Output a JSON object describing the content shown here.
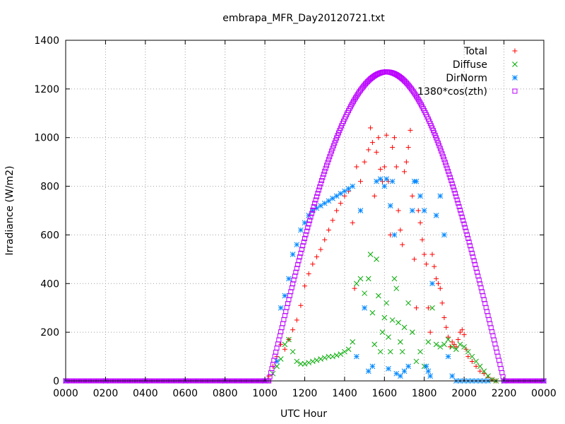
{
  "chart_data": {
    "type": "scatter",
    "title": "embrapa_MFR_Day20120721.txt",
    "xlabel": "UTC Hour",
    "ylabel": "Irradiance (W/m2)",
    "xlim": [
      0,
      24
    ],
    "ylim": [
      0,
      1400
    ],
    "grid": true,
    "legend_position": "top-right",
    "x_ticks": [
      {
        "value": 0,
        "label": "0000"
      },
      {
        "value": 2,
        "label": "0200"
      },
      {
        "value": 4,
        "label": "0400"
      },
      {
        "value": 6,
        "label": "0600"
      },
      {
        "value": 8,
        "label": "0800"
      },
      {
        "value": 10,
        "label": "1000"
      },
      {
        "value": 12,
        "label": "1200"
      },
      {
        "value": 14,
        "label": "1400"
      },
      {
        "value": 16,
        "label": "1600"
      },
      {
        "value": 18,
        "label": "1800"
      },
      {
        "value": 20,
        "label": "2000"
      },
      {
        "value": 22,
        "label": "2200"
      },
      {
        "value": 24,
        "label": "0000"
      }
    ],
    "y_ticks": [
      {
        "value": 0,
        "label": "0"
      },
      {
        "value": 200,
        "label": "200"
      },
      {
        "value": 400,
        "label": "400"
      },
      {
        "value": 600,
        "label": "600"
      },
      {
        "value": 800,
        "label": "800"
      },
      {
        "value": 1000,
        "label": "1000"
      },
      {
        "value": 1200,
        "label": "1200"
      },
      {
        "value": 1400,
        "label": "1400"
      }
    ],
    "series": [
      {
        "name": "Total",
        "color": "#ff0000",
        "marker": "plus",
        "points": [
          [
            0,
            0
          ],
          [
            1,
            0
          ],
          [
            2,
            0
          ],
          [
            3,
            0
          ],
          [
            4,
            0
          ],
          [
            5,
            0
          ],
          [
            6,
            0
          ],
          [
            7,
            0
          ],
          [
            8,
            0
          ],
          [
            9,
            0
          ],
          [
            10,
            0
          ],
          [
            10.2,
            20
          ],
          [
            10.4,
            60
          ],
          [
            10.6,
            100
          ],
          [
            10.8,
            150
          ],
          [
            11.0,
            130
          ],
          [
            11.2,
            170
          ],
          [
            11.4,
            210
          ],
          [
            11.6,
            250
          ],
          [
            11.8,
            310
          ],
          [
            12.0,
            390
          ],
          [
            12.2,
            440
          ],
          [
            12.4,
            480
          ],
          [
            12.6,
            510
          ],
          [
            12.8,
            540
          ],
          [
            13.0,
            580
          ],
          [
            13.2,
            620
          ],
          [
            13.4,
            660
          ],
          [
            13.6,
            700
          ],
          [
            13.8,
            730
          ],
          [
            14.0,
            760
          ],
          [
            14.2,
            780
          ],
          [
            14.4,
            650
          ],
          [
            14.5,
            380
          ],
          [
            14.6,
            880
          ],
          [
            14.8,
            820
          ],
          [
            15.0,
            900
          ],
          [
            15.2,
            950
          ],
          [
            15.3,
            1040
          ],
          [
            15.4,
            980
          ],
          [
            15.5,
            760
          ],
          [
            15.6,
            940
          ],
          [
            15.7,
            1000
          ],
          [
            15.8,
            870
          ],
          [
            15.9,
            820
          ],
          [
            16.0,
            880
          ],
          [
            16.1,
            1010
          ],
          [
            16.2,
            820
          ],
          [
            16.3,
            600
          ],
          [
            16.4,
            960
          ],
          [
            16.5,
            1000
          ],
          [
            16.6,
            880
          ],
          [
            16.7,
            700
          ],
          [
            16.8,
            620
          ],
          [
            16.9,
            560
          ],
          [
            17.0,
            860
          ],
          [
            17.1,
            900
          ],
          [
            17.2,
            960
          ],
          [
            17.3,
            1030
          ],
          [
            17.4,
            760
          ],
          [
            17.5,
            500
          ],
          [
            17.6,
            300
          ],
          [
            17.7,
            700
          ],
          [
            17.8,
            650
          ],
          [
            17.9,
            580
          ],
          [
            18.0,
            520
          ],
          [
            18.1,
            480
          ],
          [
            18.2,
            300
          ],
          [
            18.3,
            200
          ],
          [
            18.4,
            520
          ],
          [
            18.5,
            470
          ],
          [
            18.6,
            420
          ],
          [
            18.7,
            400
          ],
          [
            18.8,
            380
          ],
          [
            18.9,
            320
          ],
          [
            19.0,
            260
          ],
          [
            19.1,
            220
          ],
          [
            19.2,
            180
          ],
          [
            19.3,
            140
          ],
          [
            19.4,
            160
          ],
          [
            19.5,
            150
          ],
          [
            19.6,
            140
          ],
          [
            19.7,
            170
          ],
          [
            19.8,
            200
          ],
          [
            19.9,
            210
          ],
          [
            20.0,
            190
          ],
          [
            20.1,
            130
          ],
          [
            20.2,
            100
          ],
          [
            20.4,
            80
          ],
          [
            20.6,
            60
          ],
          [
            20.8,
            40
          ],
          [
            21.0,
            30
          ],
          [
            21.2,
            15
          ],
          [
            21.4,
            5
          ],
          [
            21.6,
            0
          ],
          [
            22,
            0
          ],
          [
            23,
            0
          ],
          [
            24,
            0
          ]
        ]
      },
      {
        "name": "Diffuse",
        "color": "#00aa00",
        "marker": "cross",
        "points": [
          [
            0,
            0
          ],
          [
            2,
            0
          ],
          [
            4,
            0
          ],
          [
            6,
            0
          ],
          [
            8,
            0
          ],
          [
            10,
            0
          ],
          [
            10.4,
            30
          ],
          [
            10.6,
            60
          ],
          [
            10.8,
            90
          ],
          [
            11.0,
            150
          ],
          [
            11.2,
            170
          ],
          [
            11.4,
            120
          ],
          [
            11.6,
            80
          ],
          [
            11.8,
            70
          ],
          [
            12.0,
            70
          ],
          [
            12.2,
            75
          ],
          [
            12.4,
            80
          ],
          [
            12.6,
            85
          ],
          [
            12.8,
            90
          ],
          [
            13.0,
            95
          ],
          [
            13.2,
            100
          ],
          [
            13.4,
            100
          ],
          [
            13.6,
            105
          ],
          [
            13.8,
            110
          ],
          [
            14.0,
            120
          ],
          [
            14.2,
            130
          ],
          [
            14.4,
            160
          ],
          [
            14.6,
            400
          ],
          [
            14.8,
            420
          ],
          [
            15.0,
            360
          ],
          [
            15.2,
            420
          ],
          [
            15.3,
            520
          ],
          [
            15.4,
            280
          ],
          [
            15.5,
            150
          ],
          [
            15.6,
            500
          ],
          [
            15.7,
            350
          ],
          [
            15.8,
            120
          ],
          [
            15.9,
            200
          ],
          [
            16.0,
            260
          ],
          [
            16.1,
            320
          ],
          [
            16.2,
            180
          ],
          [
            16.3,
            120
          ],
          [
            16.4,
            250
          ],
          [
            16.5,
            420
          ],
          [
            16.6,
            380
          ],
          [
            16.7,
            240
          ],
          [
            16.8,
            160
          ],
          [
            16.9,
            120
          ],
          [
            17.0,
            220
          ],
          [
            17.2,
            320
          ],
          [
            17.4,
            200
          ],
          [
            17.6,
            80
          ],
          [
            17.8,
            120
          ],
          [
            18.0,
            60
          ],
          [
            18.2,
            160
          ],
          [
            18.4,
            300
          ],
          [
            18.6,
            150
          ],
          [
            18.8,
            140
          ],
          [
            19.0,
            150
          ],
          [
            19.2,
            170
          ],
          [
            19.4,
            140
          ],
          [
            19.6,
            130
          ],
          [
            19.8,
            150
          ],
          [
            20.0,
            140
          ],
          [
            20.2,
            120
          ],
          [
            20.4,
            100
          ],
          [
            20.6,
            80
          ],
          [
            20.8,
            60
          ],
          [
            21.0,
            40
          ],
          [
            21.2,
            20
          ],
          [
            21.4,
            5
          ],
          [
            21.6,
            0
          ],
          [
            22,
            0
          ],
          [
            24,
            0
          ]
        ]
      },
      {
        "name": "DirNorm",
        "color": "#0088ff",
        "marker": "star",
        "points": [
          [
            0,
            0
          ],
          [
            2,
            0
          ],
          [
            4,
            0
          ],
          [
            6,
            0
          ],
          [
            8,
            0
          ],
          [
            10,
            0
          ],
          [
            10.6,
            80
          ],
          [
            10.8,
            300
          ],
          [
            11.0,
            350
          ],
          [
            11.2,
            420
          ],
          [
            11.4,
            520
          ],
          [
            11.6,
            560
          ],
          [
            11.8,
            620
          ],
          [
            12.0,
            650
          ],
          [
            12.2,
            680
          ],
          [
            12.4,
            700
          ],
          [
            12.6,
            710
          ],
          [
            12.8,
            720
          ],
          [
            13.0,
            730
          ],
          [
            13.2,
            740
          ],
          [
            13.4,
            750
          ],
          [
            13.6,
            760
          ],
          [
            13.8,
            770
          ],
          [
            14.0,
            780
          ],
          [
            14.2,
            790
          ],
          [
            14.4,
            800
          ],
          [
            14.6,
            100
          ],
          [
            14.8,
            700
          ],
          [
            15.0,
            300
          ],
          [
            15.2,
            40
          ],
          [
            15.4,
            60
          ],
          [
            15.6,
            820
          ],
          [
            15.8,
            830
          ],
          [
            16.0,
            800
          ],
          [
            16.1,
            830
          ],
          [
            16.2,
            50
          ],
          [
            16.3,
            720
          ],
          [
            16.4,
            820
          ],
          [
            16.5,
            600
          ],
          [
            16.6,
            30
          ],
          [
            16.8,
            20
          ],
          [
            17.0,
            40
          ],
          [
            17.2,
            60
          ],
          [
            17.4,
            700
          ],
          [
            17.5,
            820
          ],
          [
            17.6,
            820
          ],
          [
            17.8,
            760
          ],
          [
            18.0,
            700
          ],
          [
            18.1,
            60
          ],
          [
            18.2,
            40
          ],
          [
            18.3,
            20
          ],
          [
            18.4,
            400
          ],
          [
            18.6,
            680
          ],
          [
            18.8,
            760
          ],
          [
            19.0,
            600
          ],
          [
            19.2,
            100
          ],
          [
            19.4,
            20
          ],
          [
            19.6,
            0
          ],
          [
            19.8,
            0
          ],
          [
            20.0,
            0
          ],
          [
            20.2,
            0
          ],
          [
            20.4,
            0
          ],
          [
            20.6,
            0
          ],
          [
            20.8,
            0
          ],
          [
            21.0,
            0
          ],
          [
            21.2,
            0
          ],
          [
            22,
            0
          ],
          [
            24,
            0
          ]
        ]
      },
      {
        "name": "1380*cos(zth)",
        "color": "#bb00ff",
        "marker": "square"
      }
    ]
  }
}
